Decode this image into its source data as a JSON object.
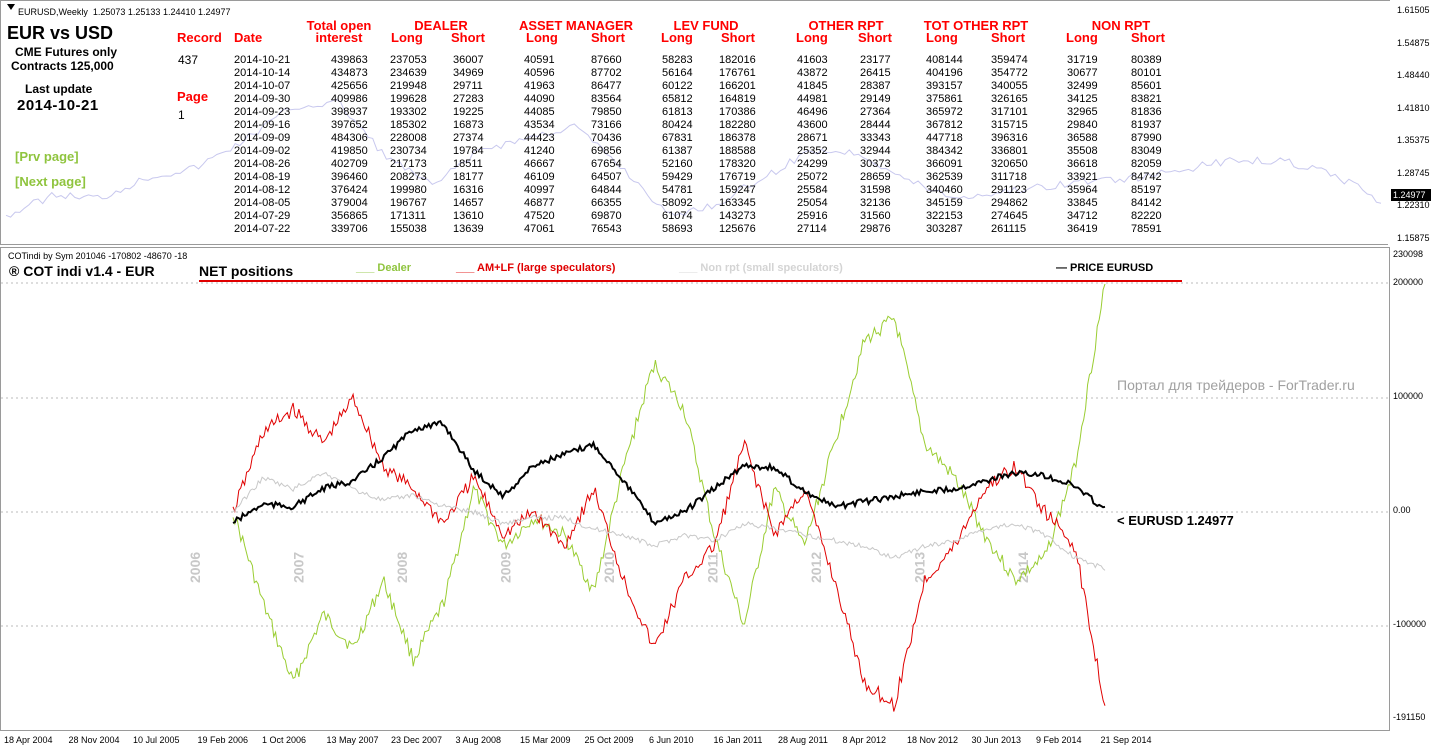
{
  "top_chart": {
    "title": "EURUSD,Weekly",
    "ohlc": "1.25073 1.25133 1.24410 1.24977"
  },
  "cot_info": {
    "pair": "EUR vs USD",
    "exchange": "CME Futures only",
    "contracts": "Contracts 125,000",
    "last_update_label": "Last update",
    "last_update_date": "2014-10-21",
    "record_label": "Record",
    "record_value": "437",
    "page_label": "Page",
    "page_value": "1",
    "prev_page": "[Prv page]",
    "next_page": "[Next page]"
  },
  "table": {
    "date_label": "Date",
    "groups": [
      "Total open",
      "DEALER",
      "ASSET MANAGER",
      "LEV FUND",
      "OTHER RPT",
      "TOT OTHER RPT",
      "NON RPT"
    ],
    "interest_label": "interest",
    "long_label": "Long",
    "short_label": "Short",
    "rows": [
      [
        "2014-10-21",
        "439863",
        "237053",
        "36007",
        "40591",
        "87660",
        "58283",
        "182016",
        "41603",
        "23177",
        "408144",
        "359474",
        "31719",
        "80389"
      ],
      [
        "2014-10-14",
        "434873",
        "234639",
        "34969",
        "40596",
        "87702",
        "56164",
        "176761",
        "43872",
        "26415",
        "404196",
        "354772",
        "30677",
        "80101"
      ],
      [
        "2014-10-07",
        "425656",
        "219948",
        "29711",
        "41963",
        "86477",
        "60122",
        "166201",
        "41845",
        "28387",
        "393157",
        "340055",
        "32499",
        "85601"
      ],
      [
        "2014-09-30",
        "409986",
        "199628",
        "27283",
        "44090",
        "83564",
        "65812",
        "164819",
        "44981",
        "29149",
        "375861",
        "326165",
        "34125",
        "83821"
      ],
      [
        "2014-09-23",
        "398937",
        "193302",
        "19225",
        "44085",
        "79850",
        "61813",
        "170386",
        "46496",
        "27364",
        "365972",
        "317101",
        "32965",
        "81836"
      ],
      [
        "2014-09-16",
        "397652",
        "185302",
        "16873",
        "43534",
        "73166",
        "80424",
        "182280",
        "43600",
        "28444",
        "367812",
        "315715",
        "29840",
        "81937"
      ],
      [
        "2014-09-09",
        "484306",
        "228008",
        "27374",
        "44423",
        "70436",
        "67831",
        "186378",
        "28671",
        "33343",
        "447718",
        "396316",
        "36588",
        "87990"
      ],
      [
        "2014-09-02",
        "419850",
        "230734",
        "19784",
        "41240",
        "69856",
        "61387",
        "188588",
        "25352",
        "32944",
        "384342",
        "336801",
        "35508",
        "83049"
      ],
      [
        "2014-08-26",
        "402709",
        "217173",
        "18511",
        "46667",
        "67654",
        "52160",
        "178320",
        "24299",
        "30373",
        "366091",
        "320650",
        "36618",
        "82059"
      ],
      [
        "2014-08-19",
        "396460",
        "208273",
        "18177",
        "46109",
        "64507",
        "59429",
        "176719",
        "25072",
        "28659",
        "362539",
        "311718",
        "33921",
        "84742"
      ],
      [
        "2014-08-12",
        "376424",
        "199980",
        "16316",
        "40997",
        "64844",
        "54781",
        "159247",
        "25584",
        "31598",
        "340460",
        "291123",
        "35964",
        "85197"
      ],
      [
        "2014-08-05",
        "379004",
        "196767",
        "14657",
        "46877",
        "66355",
        "58092",
        "163345",
        "25054",
        "32136",
        "345159",
        "294862",
        "33845",
        "84142"
      ],
      [
        "2014-07-29",
        "356865",
        "171311",
        "13610",
        "47520",
        "69870",
        "61074",
        "143273",
        "25916",
        "31560",
        "322153",
        "274645",
        "34712",
        "82220"
      ],
      [
        "2014-07-22",
        "339706",
        "155038",
        "13639",
        "47061",
        "76543",
        "58693",
        "125676",
        "27114",
        "29876",
        "303287",
        "261115",
        "36419",
        "78591"
      ]
    ]
  },
  "right_axis_top": [
    "1.61505",
    "1.54875",
    "1.48440",
    "1.41810",
    "1.35375",
    "1.28745",
    "1.22310",
    "1.15875"
  ],
  "current_price_tag": "1.24977",
  "bottom_pane": {
    "indicator_header": "COTindi by Sym 201046 -170802 -48670 -18",
    "title": "® COT indi v1.4 - EUR",
    "net_label": "NET positions",
    "legend_dealer": "___ Dealer",
    "legend_amlf": "___ AM+LF (large speculators)",
    "legend_nonrpt": "___ Non rpt (small speculators)",
    "legend_price": "— PRICE EURUSD",
    "watermark": "Портал для трейдеров - ForTrader.ru",
    "price_label": "< EURUSD  1.24977",
    "years": [
      "2006",
      "2007",
      "2008",
      "2009",
      "2010",
      "2011",
      "2012",
      "2013",
      "2014"
    ],
    "right_axis": [
      "230098",
      "200000",
      "100000",
      "0.00",
      "-100000",
      "-191150"
    ]
  },
  "time_axis": [
    "18 Apr 2004",
    "28 Nov 2004",
    "10 Jul 2005",
    "19 Feb 2006",
    "1 Oct 2006",
    "13 May 2007",
    "23 Dec 2007",
    "3 Aug 2008",
    "15 Mar 2009",
    "25 Oct 2009",
    "6 Jun 2010",
    "16 Jan 2011",
    "28 Aug 2011",
    "8 Apr 2012",
    "18 Nov 2012",
    "30 Jun 2013",
    "9 Feb 2014",
    "21 Sep 2014"
  ],
  "colors": {
    "red": "#ff0000",
    "lime": "#8fc43e",
    "dealer_line": "#9acd32",
    "amlf_line": "#e00000",
    "nonrpt_line": "#c8c8c8",
    "price_line": "#000000",
    "price_tag_bg": "#000000"
  },
  "chart_data": {
    "type": "line",
    "title": "® COT indi v1.4 - EUR",
    "series": [
      {
        "name": "Dealer",
        "color": "#9acd32",
        "values": [
          0,
          -80000,
          -150000,
          -90000,
          -120000,
          -60000,
          -130000,
          -80000,
          20000,
          -30000,
          -5000,
          -20000,
          -70000,
          40000,
          130000,
          90000,
          -20000,
          -100000,
          20000,
          -30000,
          60000,
          150000,
          170000,
          60000,
          30000,
          -20000,
          -60000,
          -40000,
          40000,
          200000
        ]
      },
      {
        "name": "AM+LF (large speculators)",
        "color": "#e00000",
        "values": [
          0,
          70000,
          90000,
          60000,
          100000,
          40000,
          20000,
          -10000,
          30000,
          -20000,
          0,
          -30000,
          20000,
          -60000,
          -120000,
          -60000,
          -30000,
          60000,
          -20000,
          20000,
          -60000,
          -150000,
          -170000,
          -60000,
          -30000,
          20000,
          40000,
          0,
          -30000,
          -170000
        ]
      },
      {
        "name": "Non rpt (small speculators)",
        "color": "#c8c8c8",
        "values": [
          0,
          30000,
          20000,
          35000,
          20000,
          10000,
          15000,
          5000,
          0,
          -10000,
          -5000,
          -5000,
          -15000,
          -20000,
          -30000,
          -20000,
          -25000,
          -10000,
          -15000,
          -20000,
          -25000,
          -30000,
          -40000,
          -30000,
          -25000,
          -15000,
          -10000,
          -20000,
          -40000,
          -50000
        ]
      },
      {
        "name": "PRICE EURUSD",
        "color": "#000000",
        "values": [
          1.2,
          1.27,
          1.26,
          1.33,
          1.36,
          1.45,
          1.56,
          1.58,
          1.4,
          1.3,
          1.42,
          1.46,
          1.5,
          1.36,
          1.2,
          1.24,
          1.33,
          1.42,
          1.41,
          1.32,
          1.26,
          1.28,
          1.3,
          1.32,
          1.33,
          1.36,
          1.39,
          1.38,
          1.34,
          1.25
        ]
      }
    ]
  }
}
